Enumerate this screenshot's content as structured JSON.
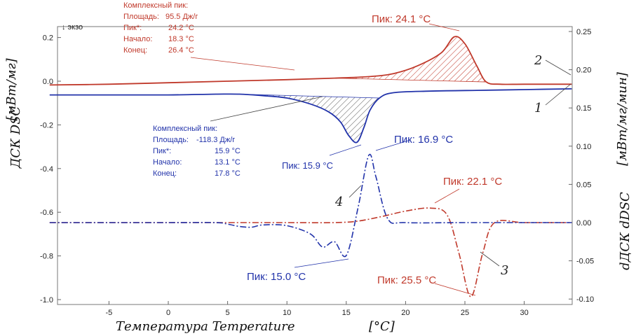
{
  "chart_data": {
    "type": "line",
    "title": "",
    "xlabel": "Температура Temperature",
    "xunit": "[°C]",
    "ylabel_left": "ДСК DSC",
    "ylabel_left_unit": "[мВт/мг]",
    "ylabel_right": "dДСК dDSC",
    "ylabel_right_unit": "[мВт/мг/мин]",
    "exo_label": "↓ экзо",
    "xlim": [
      -10,
      34
    ],
    "ylim_left": [
      -1.0,
      0.25
    ],
    "ylim_right": [
      -0.1,
      0.25
    ],
    "x_ticks": [
      -5,
      0,
      5,
      10,
      15,
      20,
      25,
      30
    ],
    "y_left_ticks": [
      "0.2",
      "0.0",
      "-0.2",
      "-0.4",
      "-0.6",
      "-0.8",
      "-1.0"
    ],
    "y_left_tick_values": [
      0.2,
      0.0,
      -0.2,
      -0.4,
      -0.6,
      -0.8,
      -1.0
    ],
    "y_right_ticks": [
      "0.25",
      "0.20",
      "0.15",
      "0.10",
      "0.05",
      "0.00",
      "-0.05",
      "-0.10"
    ],
    "y_right_tick_values": [
      0.25,
      0.2,
      0.15,
      0.1,
      0.05,
      0.0,
      -0.05,
      -0.1
    ],
    "series": [
      {
        "name": "1",
        "axis": "right",
        "color": "#2233aa",
        "style": "solid",
        "x": [
          -10,
          -5,
          0,
          4,
          6,
          8,
          10,
          12,
          13.5,
          14.5,
          15.2,
          15.9,
          16.5,
          17,
          17.8,
          19,
          22,
          26,
          30,
          34
        ],
        "y": [
          0.167,
          0.167,
          0.167,
          0.168,
          0.168,
          0.166,
          0.163,
          0.155,
          0.145,
          0.132,
          0.114,
          0.105,
          0.125,
          0.147,
          0.163,
          0.17,
          0.172,
          0.173,
          0.174,
          0.175
        ]
      },
      {
        "name": "2",
        "axis": "right",
        "color": "#c0392b",
        "style": "solid",
        "x": [
          -10,
          -5,
          0,
          5,
          10,
          14,
          17,
          19,
          21,
          23,
          24.1,
          25,
          26,
          26.8,
          28,
          30,
          34
        ],
        "y": [
          0.18,
          0.181,
          0.183,
          0.185,
          0.187,
          0.189,
          0.191,
          0.195,
          0.205,
          0.222,
          0.243,
          0.234,
          0.205,
          0.184,
          0.181,
          0.181,
          0.181
        ]
      },
      {
        "name": "3",
        "axis": "right",
        "color": "#c0392b",
        "style": "dashdot",
        "x": [
          -10,
          -5,
          0,
          5,
          10,
          14,
          16,
          18,
          20,
          22.1,
          23.5,
          24.5,
          25.5,
          26.5,
          27.5,
          30,
          34
        ],
        "y": [
          0.0,
          0.0,
          0.0,
          0.0,
          0.0,
          0.0,
          0.002,
          0.008,
          0.015,
          0.019,
          0.01,
          -0.04,
          -0.097,
          -0.04,
          0.0,
          0.0,
          0.0
        ]
      },
      {
        "name": "4",
        "axis": "right",
        "color": "#2233aa",
        "style": "dashdot",
        "x": [
          -10,
          -5,
          0,
          4,
          5,
          6,
          7,
          8,
          10,
          12,
          13,
          14,
          15,
          16,
          16.9,
          17.5,
          18.5,
          20,
          25,
          30,
          34
        ],
        "y": [
          0.0,
          0.0,
          0.0,
          0.0,
          -0.002,
          -0.005,
          -0.006,
          -0.003,
          -0.004,
          -0.015,
          -0.032,
          -0.025,
          -0.043,
          0.02,
          0.088,
          0.06,
          0.005,
          0.0,
          0.0,
          0.0,
          0.0
        ]
      }
    ],
    "curve_labels": [
      "1",
      "2",
      "3",
      "4"
    ],
    "peak_labels": {
      "p1": "Пик: 24.1 °C",
      "p2": "Пик: 15.9 °C",
      "p3": "Пик: 16.9 °C",
      "p4": "Пик: 22.1 °C",
      "p5": "Пик: 15.0 °C",
      "p6": "Пик: 25.5 °C"
    },
    "annotation_red": {
      "title": "Комплексный пик:",
      "rows": [
        {
          "label": "Площадь:",
          "value": "95.5 Дж/г"
        },
        {
          "label": "Пик*:",
          "value": "24.2 °C"
        },
        {
          "label": "Начало:",
          "value": "18.3 °C"
        },
        {
          "label": "Конец:",
          "value": "26.4 °C"
        }
      ]
    },
    "annotation_blue": {
      "title": "Комплексный пик:",
      "rows": [
        {
          "label": "Площадь:",
          "value": "-118.3 Дж/г"
        },
        {
          "label": "Пик*:",
          "value": "15.9 °C"
        },
        {
          "label": "Начало:",
          "value": "13.1 °C"
        },
        {
          "label": "Конец:",
          "value": "17.8 °C"
        }
      ]
    }
  }
}
